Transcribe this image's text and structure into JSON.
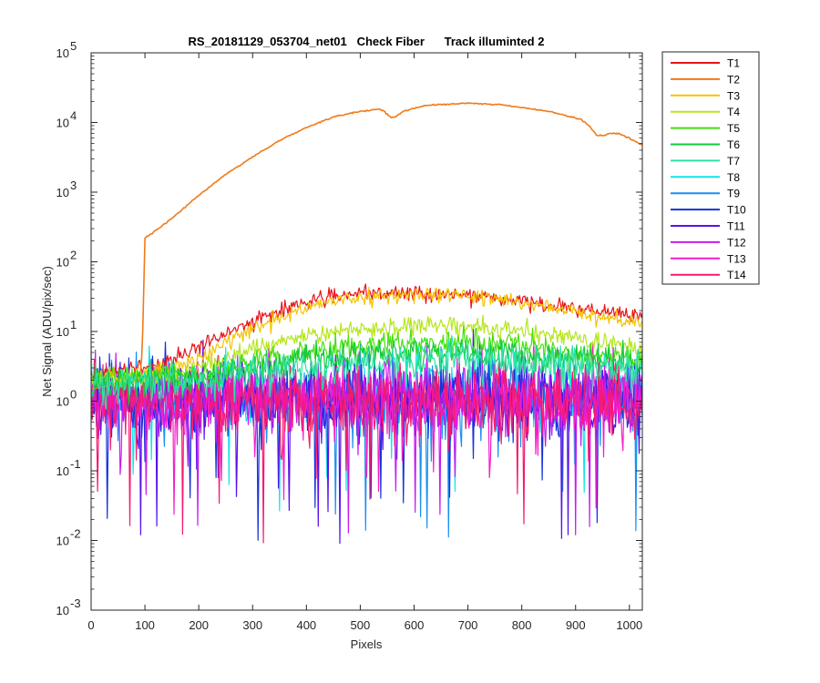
{
  "chart_data": {
    "type": "line",
    "title": "RS_20181129_053704_net01   Check Fiber      Track illuminted 2",
    "xlabel": "Pixels",
    "ylabel": "Net Signal (ADU/pix/sec)",
    "xlim": [
      0,
      1024
    ],
    "ylim": [
      0.001,
      100000
    ],
    "yscale": "log",
    "grid": false,
    "legend_position": "outside-right-top",
    "x_ticks": [
      "0",
      "100",
      "200",
      "300",
      "400",
      "500",
      "600",
      "700",
      "800",
      "900",
      "1000"
    ],
    "x_tick_values": [
      0,
      100,
      200,
      300,
      400,
      500,
      600,
      700,
      800,
      900,
      1000
    ],
    "y_ticks": [
      {
        "base": "10",
        "exp": "-3",
        "value": 0.001
      },
      {
        "base": "10",
        "exp": "-2",
        "value": 0.01
      },
      {
        "base": "10",
        "exp": "-1",
        "value": 0.1
      },
      {
        "base": "10",
        "exp": "0",
        "value": 1
      },
      {
        "base": "10",
        "exp": "1",
        "value": 10
      },
      {
        "base": "10",
        "exp": "2",
        "value": 100
      },
      {
        "base": "10",
        "exp": "3",
        "value": 1000
      },
      {
        "base": "10",
        "exp": "4",
        "value": 10000
      },
      {
        "base": "10",
        "exp": "5",
        "value": 100000
      }
    ],
    "series": [
      {
        "name": "T1",
        "color": "#e8141b",
        "kind": "smooth",
        "points": [
          [
            0,
            2.5
          ],
          [
            100,
            3
          ],
          [
            150,
            4
          ],
          [
            200,
            6
          ],
          [
            250,
            9
          ],
          [
            300,
            14
          ],
          [
            350,
            20
          ],
          [
            400,
            27
          ],
          [
            450,
            32
          ],
          [
            500,
            34
          ],
          [
            550,
            35
          ],
          [
            600,
            35.5
          ],
          [
            650,
            35
          ],
          [
            700,
            33
          ],
          [
            750,
            30
          ],
          [
            800,
            27
          ],
          [
            850,
            24
          ],
          [
            900,
            21
          ],
          [
            950,
            19
          ],
          [
            1000,
            17
          ],
          [
            1024,
            16
          ]
        ],
        "noise": 0.12
      },
      {
        "name": "T2",
        "color": "#f07b1a",
        "kind": "smooth",
        "points": [
          [
            0,
            1.5
          ],
          [
            90,
            2
          ],
          [
            95,
            5
          ],
          [
            100,
            220
          ],
          [
            120,
            280
          ],
          [
            150,
            420
          ],
          [
            200,
            900
          ],
          [
            250,
            1800
          ],
          [
            300,
            3200
          ],
          [
            350,
            5500
          ],
          [
            400,
            8500
          ],
          [
            450,
            12000
          ],
          [
            500,
            14500
          ],
          [
            535,
            15500
          ],
          [
            545,
            14500
          ],
          [
            555,
            12000
          ],
          [
            565,
            12000
          ],
          [
            580,
            14500
          ],
          [
            620,
            17500
          ],
          [
            700,
            19000
          ],
          [
            760,
            18000
          ],
          [
            850,
            14500
          ],
          [
            910,
            11000
          ],
          [
            925,
            9000
          ],
          [
            940,
            6500
          ],
          [
            955,
            6500
          ],
          [
            965,
            7000
          ],
          [
            980,
            7000
          ],
          [
            1000,
            6000
          ],
          [
            1024,
            4700
          ]
        ],
        "noise": 0
      },
      {
        "name": "T3",
        "color": "#f5c400",
        "kind": "smooth",
        "points": [
          [
            0,
            2
          ],
          [
            100,
            2.5
          ],
          [
            150,
            3
          ],
          [
            200,
            4
          ],
          [
            250,
            7
          ],
          [
            300,
            11
          ],
          [
            350,
            16
          ],
          [
            400,
            22
          ],
          [
            450,
            27
          ],
          [
            500,
            31
          ],
          [
            550,
            33
          ],
          [
            600,
            34
          ],
          [
            650,
            34.5
          ],
          [
            700,
            33
          ],
          [
            750,
            30
          ],
          [
            800,
            26
          ],
          [
            850,
            22
          ],
          [
            900,
            19
          ],
          [
            950,
            16.5
          ],
          [
            1000,
            14
          ],
          [
            1024,
            12.5
          ]
        ],
        "noise": 0.12
      },
      {
        "name": "T4",
        "color": "#b6e61e",
        "kind": "smooth",
        "points": [
          [
            0,
            2
          ],
          [
            150,
            2.5
          ],
          [
            200,
            3
          ],
          [
            250,
            4
          ],
          [
            300,
            5.5
          ],
          [
            350,
            7
          ],
          [
            400,
            8.5
          ],
          [
            450,
            10
          ],
          [
            500,
            11
          ],
          [
            550,
            11.5
          ],
          [
            600,
            12
          ],
          [
            650,
            12.5
          ],
          [
            700,
            12
          ],
          [
            750,
            11
          ],
          [
            800,
            10
          ],
          [
            850,
            9
          ],
          [
            900,
            8
          ],
          [
            950,
            7
          ],
          [
            1000,
            6
          ],
          [
            1024,
            5.5
          ]
        ],
        "noise": 0.15
      },
      {
        "name": "T5",
        "color": "#45e10e",
        "kind": "smooth",
        "points": [
          [
            0,
            2
          ],
          [
            200,
            2.5
          ],
          [
            300,
            3.5
          ],
          [
            400,
            5
          ],
          [
            500,
            6
          ],
          [
            600,
            6.8
          ],
          [
            650,
            7
          ],
          [
            700,
            6.8
          ],
          [
            800,
            6
          ],
          [
            900,
            5
          ],
          [
            1000,
            4
          ],
          [
            1024,
            3.8
          ]
        ],
        "noise": 0.2
      },
      {
        "name": "T6",
        "color": "#12c83c",
        "kind": "smooth",
        "points": [
          [
            0,
            1.8
          ],
          [
            200,
            2.2
          ],
          [
            300,
            3
          ],
          [
            400,
            4
          ],
          [
            500,
            4.6
          ],
          [
            600,
            5
          ],
          [
            700,
            5
          ],
          [
            800,
            4.6
          ],
          [
            900,
            4
          ],
          [
            1000,
            3.4
          ],
          [
            1024,
            3.2
          ]
        ],
        "noise": 0.25
      },
      {
        "name": "T7",
        "color": "#2be2a6",
        "kind": "smooth",
        "points": [
          [
            0,
            1.6
          ],
          [
            200,
            2
          ],
          [
            300,
            2.6
          ],
          [
            400,
            3.2
          ],
          [
            500,
            3.7
          ],
          [
            600,
            4
          ],
          [
            700,
            4
          ],
          [
            800,
            3.7
          ],
          [
            900,
            3.3
          ],
          [
            1000,
            2.9
          ],
          [
            1024,
            2.8
          ]
        ],
        "noise": 0.3
      },
      {
        "name": "T8",
        "color": "#14e4ea",
        "kind": "noise",
        "base": 1.2,
        "noise": 0.55,
        "spike_rate": 0.025
      },
      {
        "name": "T9",
        "color": "#1a8ff0",
        "kind": "noise",
        "base": 1.15,
        "noise": 0.55,
        "spike_rate": 0.025
      },
      {
        "name": "T10",
        "color": "#1633d9",
        "kind": "noise",
        "base": 1.1,
        "noise": 0.6,
        "spike_rate": 0.03
      },
      {
        "name": "T11",
        "color": "#5712e8",
        "kind": "noise",
        "base": 1.1,
        "noise": 0.6,
        "spike_rate": 0.03
      },
      {
        "name": "T12",
        "color": "#c81aef",
        "kind": "noise",
        "base": 1.1,
        "noise": 0.6,
        "spike_rate": 0.03
      },
      {
        "name": "T13",
        "color": "#f51ec8",
        "kind": "noise",
        "base": 1.05,
        "noise": 0.6,
        "spike_rate": 0.03
      },
      {
        "name": "T14",
        "color": "#f41a70",
        "kind": "noise",
        "base": 1.05,
        "noise": 0.6,
        "spike_rate": 0.03
      }
    ]
  }
}
